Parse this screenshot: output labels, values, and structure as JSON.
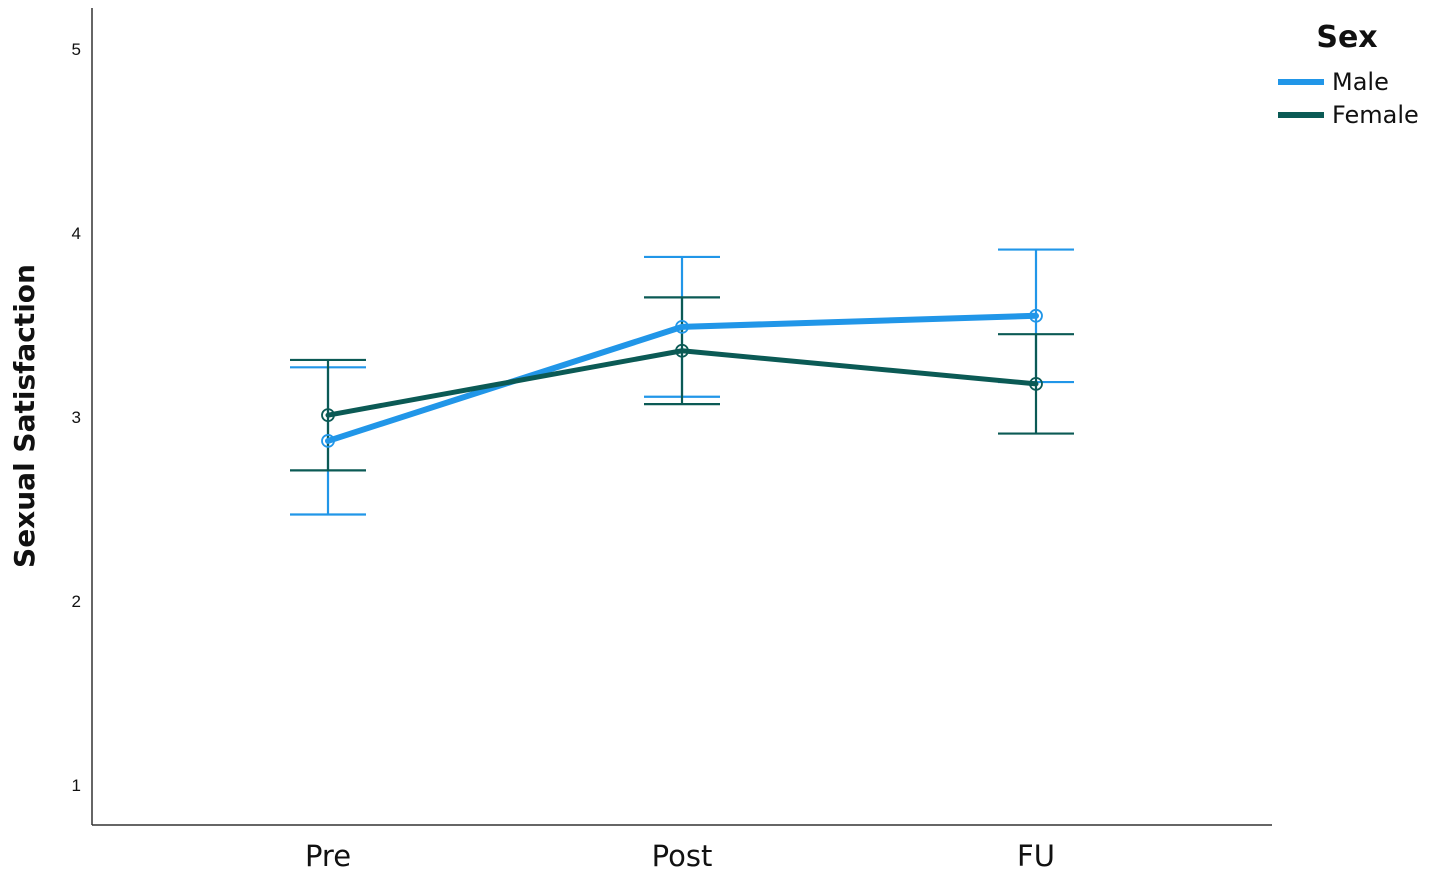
{
  "chart_data": {
    "type": "line",
    "categories": [
      "Pre",
      "Post",
      "FU"
    ],
    "ylabel": "Sexual Satisfaction",
    "xlabel": "",
    "ylim": [
      0.8,
      5.2
    ],
    "yticks": [
      "1",
      "2",
      "3",
      "4",
      "5"
    ],
    "legend": {
      "title": "Sex",
      "position": "top-right"
    },
    "error_bars": true,
    "grid": false,
    "series": [
      {
        "name": "Male",
        "color": "#2196e8",
        "values": [
          2.87,
          3.49,
          3.55
        ],
        "lower": [
          2.47,
          3.11,
          3.19
        ],
        "upper": [
          3.27,
          3.87,
          3.91
        ]
      },
      {
        "name": "Female",
        "color": "#0b5a55",
        "values": [
          3.01,
          3.36,
          3.18
        ],
        "lower": [
          2.71,
          3.07,
          2.91
        ],
        "upper": [
          3.31,
          3.65,
          3.45
        ]
      }
    ]
  }
}
